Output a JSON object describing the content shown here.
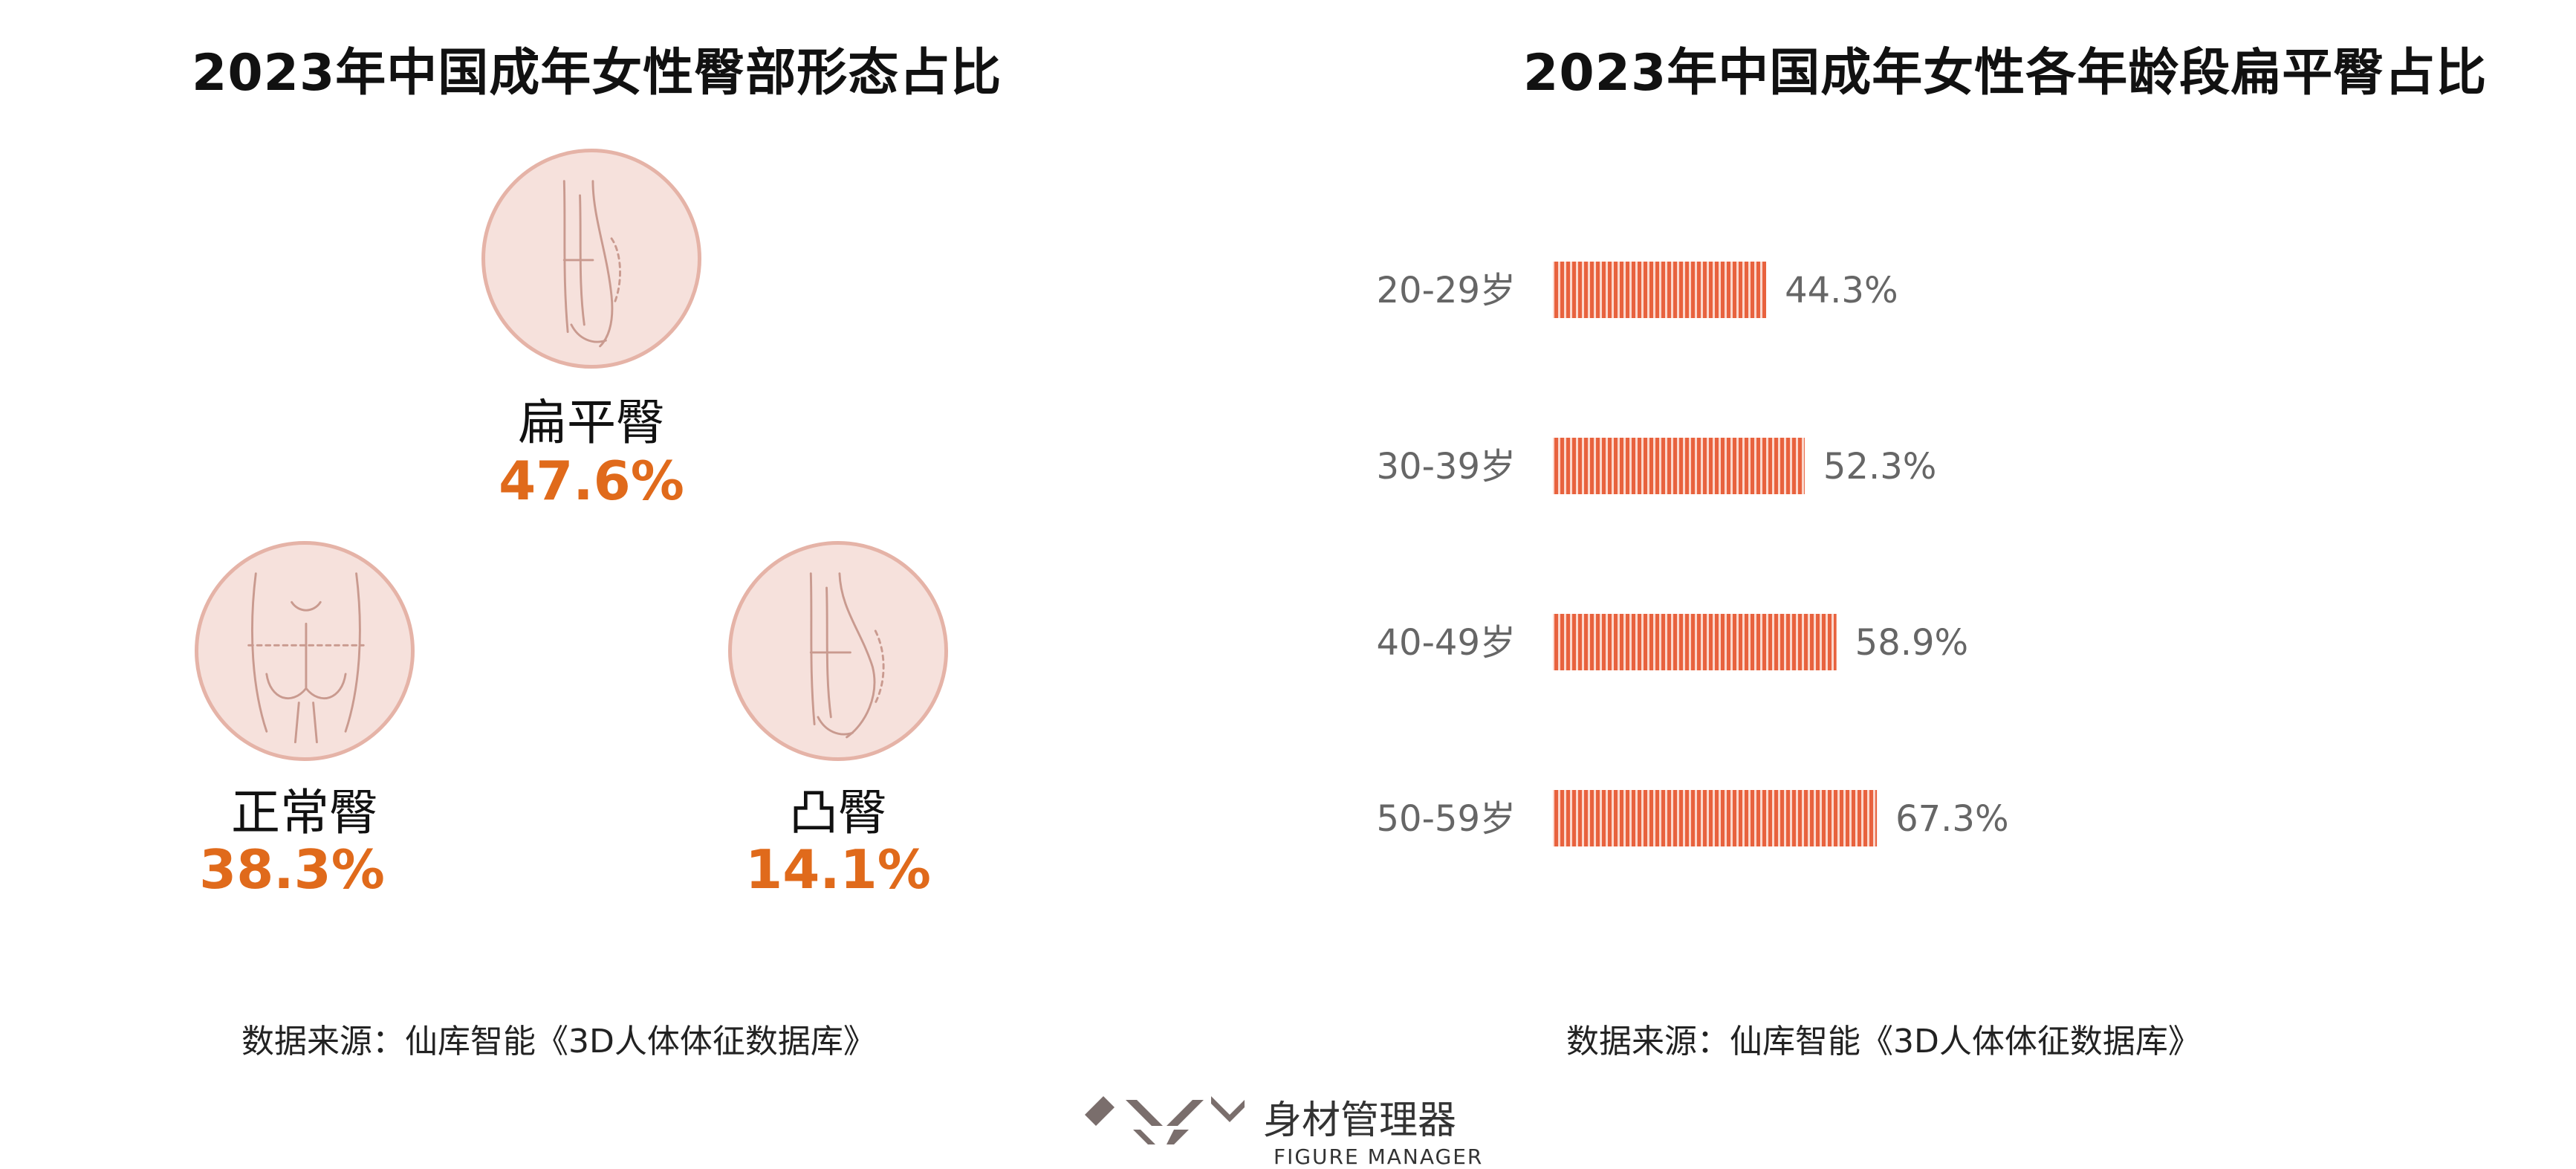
{
  "left_panel": {
    "title": "2023年中国成年女性臀部形态占比",
    "shapes": [
      {
        "label": "扁平臀",
        "value": "47.6%"
      },
      {
        "label": "正常臀",
        "value": "38.3%"
      },
      {
        "label": "凸臀",
        "value": "14.1%"
      }
    ],
    "source": "数据来源：仙库智能《3D人体体征数据库》"
  },
  "right_panel": {
    "title": "2023年中国成年女性各年龄段扁平臀占比",
    "source": "数据来源：仙库智能《3D人体体征数据库》"
  },
  "chart_data": {
    "type": "bar",
    "orientation": "horizontal",
    "title": "2023年中国成年女性各年龄段扁平臀占比",
    "categories": [
      "20-29岁",
      "30-39岁",
      "40-49岁",
      "50-59岁"
    ],
    "values": [
      44.3,
      52.3,
      58.9,
      67.3
    ],
    "value_labels": [
      "44.3%",
      "52.3%",
      "58.9%",
      "67.3%"
    ],
    "xlim": [
      0,
      100
    ],
    "grid": false,
    "bar_color": "#e8623e"
  },
  "logo": {
    "cn": "身材管理器",
    "en": "FIGURE MANAGER"
  },
  "colors": {
    "accent": "#e06a1b",
    "circle_fill": "#f6e1dc",
    "circle_border": "#e5b3a7",
    "bar": "#e8623e"
  }
}
